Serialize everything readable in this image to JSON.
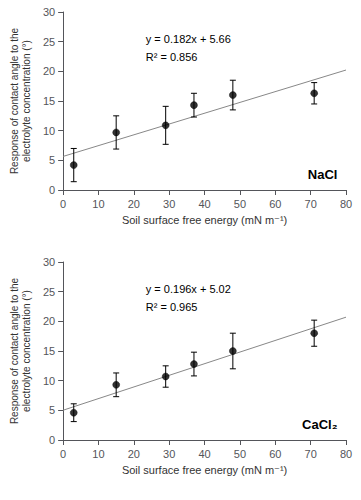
{
  "chart_data": [
    {
      "type": "scatter",
      "x_label": "Soil surface free energy (mN m⁻¹)",
      "y_label": "Response of contact angle to the\nelectrolyte concentration (°)",
      "xlim": [
        0,
        80
      ],
      "ylim": [
        0,
        30
      ],
      "xticks": [
        0,
        10,
        20,
        30,
        40,
        50,
        60,
        70,
        80
      ],
      "yticks": [
        0,
        5,
        10,
        15,
        20,
        25,
        30
      ],
      "grid": false,
      "annotations": [
        "y = 0.182x + 5.66",
        "R² = 0.856",
        "NaCl"
      ],
      "series": [
        {
          "type": "line",
          "color": "#888888",
          "x": [
            0,
            80
          ],
          "values": [
            5.66,
            20.22
          ]
        },
        {
          "type": "scatter",
          "color": "black",
          "marker": "circle",
          "x": [
            3,
            15,
            29,
            37,
            48,
            71
          ],
          "values": [
            4.2,
            9.7,
            10.9,
            14.3,
            16.0,
            16.3
          ],
          "yerr": [
            2.8,
            2.8,
            3.2,
            2.0,
            2.5,
            1.8
          ]
        }
      ]
    },
    {
      "type": "scatter",
      "x_label": "Soil surface free energy (mN m⁻¹)",
      "y_label": "Response of contact angle to the\nelectrolyte concentration (°)",
      "xlim": [
        0,
        80
      ],
      "ylim": [
        0,
        30
      ],
      "xticks": [
        0,
        10,
        20,
        30,
        40,
        50,
        60,
        70,
        80
      ],
      "yticks": [
        0,
        5,
        10,
        15,
        20,
        25,
        30
      ],
      "grid": false,
      "annotations": [
        "y = 0.196x + 5.02",
        "R² = 0.965",
        "CaCl₂"
      ],
      "series": [
        {
          "type": "line",
          "color": "#888888",
          "x": [
            0,
            80
          ],
          "values": [
            5.02,
            20.7
          ]
        },
        {
          "type": "scatter",
          "color": "black",
          "marker": "circle",
          "x": [
            3,
            15,
            29,
            37,
            48,
            71
          ],
          "values": [
            4.6,
            9.3,
            10.7,
            12.8,
            15.0,
            18.0
          ],
          "yerr": [
            1.5,
            2.0,
            1.8,
            2.0,
            3.0,
            2.2
          ]
        }
      ]
    }
  ]
}
